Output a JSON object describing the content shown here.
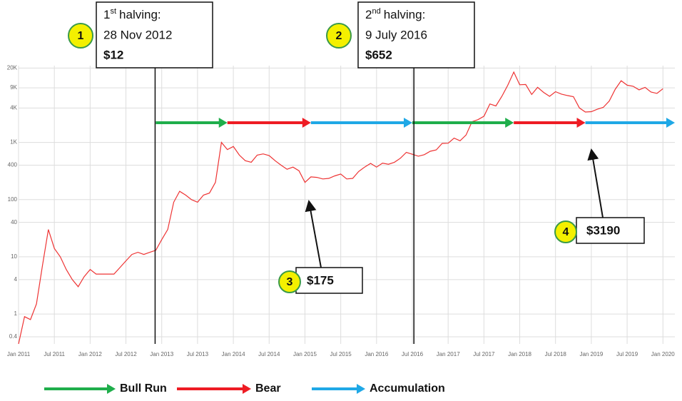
{
  "chart_data": {
    "type": "line",
    "log_scale": true,
    "grid": true,
    "x": [
      "2011-01",
      "2011-02",
      "2011-03",
      "2011-04",
      "2011-05",
      "2011-06",
      "2011-07",
      "2011-08",
      "2011-09",
      "2011-10",
      "2011-11",
      "2011-12",
      "2012-01",
      "2012-02",
      "2012-03",
      "2012-04",
      "2012-05",
      "2012-06",
      "2012-07",
      "2012-08",
      "2012-09",
      "2012-10",
      "2012-11",
      "2012-12",
      "2013-01",
      "2013-02",
      "2013-03",
      "2013-04",
      "2013-05",
      "2013-06",
      "2013-07",
      "2013-08",
      "2013-09",
      "2013-10",
      "2013-11",
      "2013-12",
      "2014-01",
      "2014-02",
      "2014-03",
      "2014-04",
      "2014-05",
      "2014-06",
      "2014-07",
      "2014-08",
      "2014-09",
      "2014-10",
      "2014-11",
      "2014-12",
      "2015-01",
      "2015-02",
      "2015-03",
      "2015-04",
      "2015-05",
      "2015-06",
      "2015-07",
      "2015-08",
      "2015-09",
      "2015-10",
      "2015-11",
      "2015-12",
      "2016-01",
      "2016-02",
      "2016-03",
      "2016-04",
      "2016-05",
      "2016-06",
      "2016-07",
      "2016-08",
      "2016-09",
      "2016-10",
      "2016-11",
      "2016-12",
      "2017-01",
      "2017-02",
      "2017-03",
      "2017-04",
      "2017-05",
      "2017-06",
      "2017-07",
      "2017-08",
      "2017-09",
      "2017-10",
      "2017-11",
      "2017-12",
      "2018-01",
      "2018-02",
      "2018-03",
      "2018-04",
      "2018-05",
      "2018-06",
      "2018-07",
      "2018-08",
      "2018-09",
      "2018-10",
      "2018-11",
      "2018-12",
      "2019-01",
      "2019-02",
      "2019-03",
      "2019-04",
      "2019-05",
      "2019-06",
      "2019-07",
      "2019-08",
      "2019-09",
      "2019-10",
      "2019-11",
      "2019-12",
      "2020-01"
    ],
    "series": [
      {
        "color": "#ee3333",
        "values": [
          0.3,
          0.9,
          0.8,
          1.5,
          7,
          30,
          14,
          10,
          6,
          4,
          3,
          4.5,
          6,
          5,
          5,
          5,
          5,
          6.5,
          8.5,
          11,
          12,
          11,
          12,
          13,
          20,
          30,
          90,
          140,
          120,
          100,
          90,
          120,
          130,
          200,
          1000,
          750,
          850,
          600,
          480,
          450,
          600,
          630,
          590,
          480,
          400,
          340,
          370,
          320,
          200,
          250,
          245,
          230,
          235,
          260,
          280,
          230,
          235,
          310,
          370,
          430,
          370,
          435,
          415,
          450,
          530,
          670,
          620,
          575,
          610,
          700,
          740,
          960,
          970,
          1190,
          1070,
          1350,
          2300,
          2500,
          2870,
          4700,
          4340,
          6400,
          10000,
          17000,
          10200,
          10300,
          6900,
          9200,
          7500,
          6400,
          7700,
          7000,
          6600,
          6300,
          4000,
          3400,
          3450,
          3800,
          4100,
          5300,
          8500,
          12000,
          10000,
          9600,
          8300,
          9200,
          7600,
          7200,
          8700
        ]
      }
    ],
    "xlim": [
      "2011-01",
      "2020-03"
    ],
    "xticks": [
      {
        "value": "2011-01",
        "label": "Jan 2011"
      },
      {
        "value": "2011-07",
        "label": "Jul 2011"
      },
      {
        "value": "2012-01",
        "label": "Jan 2012"
      },
      {
        "value": "2012-07",
        "label": "Jul 2012"
      },
      {
        "value": "2013-01",
        "label": "Jan 2013"
      },
      {
        "value": "2013-07",
        "label": "Jul 2013"
      },
      {
        "value": "2014-01",
        "label": "Jan 2014"
      },
      {
        "value": "2014-07",
        "label": "Jul 2014"
      },
      {
        "value": "2015-01",
        "label": "Jan 2015"
      },
      {
        "value": "2015-07",
        "label": "Jul 2015"
      },
      {
        "value": "2016-01",
        "label": "Jan 2016"
      },
      {
        "value": "2016-07",
        "label": "Jul 2016"
      },
      {
        "value": "2017-01",
        "label": "Jan 2017"
      },
      {
        "value": "2017-07",
        "label": "Jul 2017"
      },
      {
        "value": "2018-01",
        "label": "Jan 2018"
      },
      {
        "value": "2018-07",
        "label": "Jul 2018"
      },
      {
        "value": "2019-01",
        "label": "Jan 2019"
      },
      {
        "value": "2019-07",
        "label": "Jul 2019"
      },
      {
        "value": "2020-01",
        "label": "Jan 2020"
      }
    ],
    "ylim": [
      0.3,
      22000
    ],
    "yticks": [
      0.4,
      1,
      4,
      10,
      40,
      100,
      400,
      {
        "value": 1000,
        "label": "1K"
      },
      {
        "value": 4000,
        "label": "4K"
      },
      {
        "value": 9000,
        "label": "9K"
      },
      {
        "value": 20000,
        "label": "20K"
      }
    ],
    "halvings": [
      {
        "number": "1",
        "ordinal": "st",
        "title": "halving:",
        "date": "28 Nov 2012",
        "price": "$12",
        "x": "2012-11-28"
      },
      {
        "number": "2",
        "ordinal": "nd",
        "title": "halving:",
        "date": "9 July 2016",
        "price": "$652",
        "x": "2016-07-09"
      }
    ],
    "callouts": [
      {
        "number": "3",
        "price": "$175"
      },
      {
        "number": "4",
        "price": "$3190"
      }
    ],
    "phase_types": [
      {
        "name": "Bull Run",
        "color": "#1fae4b"
      },
      {
        "name": "Bear",
        "color": "#ee1c24"
      },
      {
        "name": "Accumulation",
        "color": "#1fa8e6"
      }
    ],
    "phases": [
      {
        "phase": 0,
        "start": "2012-12",
        "end": "2013-12"
      },
      {
        "phase": 1,
        "start": "2013-12",
        "end": "2015-02"
      },
      {
        "phase": 2,
        "start": "2015-02",
        "end": "2016-07"
      },
      {
        "phase": 0,
        "start": "2016-07",
        "end": "2017-12"
      },
      {
        "phase": 1,
        "start": "2017-12",
        "end": "2018-12"
      },
      {
        "phase": 2,
        "start": "2018-12",
        "end": "2020-03"
      }
    ]
  }
}
